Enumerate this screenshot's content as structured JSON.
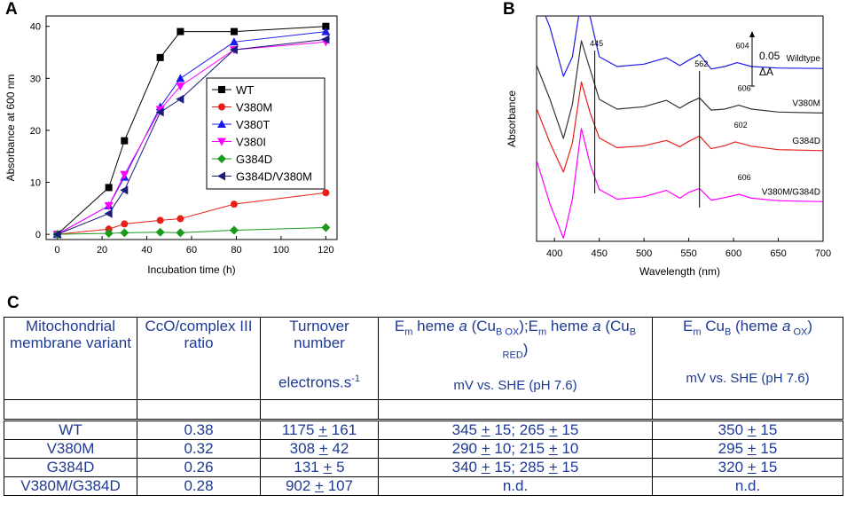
{
  "panels": {
    "a": "A",
    "b": "B",
    "c": "C"
  },
  "chartA": {
    "chart_data": {
      "type": "line",
      "xlabel": "Incubation time (h)",
      "ylabel": "Absorbance at 600 nm",
      "xlim": [
        -5,
        125
      ],
      "ylim": [
        -1,
        42
      ],
      "xticks": [
        0,
        20,
        40,
        60,
        80,
        100,
        120
      ],
      "yticks": [
        0,
        10,
        20,
        30,
        40
      ],
      "series": [
        {
          "name": "WT",
          "color": "#000000",
          "marker": "square",
          "x": [
            0,
            23,
            30,
            46,
            55,
            79,
            120
          ],
          "y": [
            0,
            9,
            18,
            34,
            39,
            39,
            40
          ]
        },
        {
          "name": "V380M",
          "color": "#e8201a",
          "marker": "circle",
          "x": [
            0,
            23,
            30,
            46,
            55,
            79,
            120
          ],
          "y": [
            0,
            1,
            2,
            2.7,
            3,
            5.8,
            8
          ]
        },
        {
          "name": "V380T",
          "color": "#1a1ae8",
          "marker": "triangle-up",
          "x": [
            0,
            23,
            30,
            46,
            55,
            79,
            120
          ],
          "y": [
            0,
            5.5,
            11,
            24.5,
            30,
            37,
            39
          ]
        },
        {
          "name": "V380I",
          "color": "#ff00ff",
          "marker": "triangle-down",
          "x": [
            0,
            23,
            30,
            46,
            55,
            79,
            120
          ],
          "y": [
            0,
            5.5,
            11.5,
            24,
            28.5,
            35.5,
            37
          ]
        },
        {
          "name": "G384D",
          "color": "#1a9a1a",
          "marker": "diamond",
          "x": [
            0,
            23,
            30,
            46,
            55,
            79,
            120
          ],
          "y": [
            0,
            0.2,
            0.3,
            0.4,
            0.3,
            0.8,
            1.3
          ]
        },
        {
          "name": "G384D/V380M",
          "color": "#1c1c7a",
          "marker": "triangle-left",
          "x": [
            0,
            23,
            30,
            46,
            55,
            79,
            120
          ],
          "y": [
            0,
            4,
            8.5,
            23.5,
            26,
            35.5,
            37.5
          ]
        }
      ]
    }
  },
  "chartB": {
    "chart_data": {
      "type": "line",
      "xlabel": "Wavelength (nm)",
      "ylabel": "Absorbance",
      "xlim": [
        380,
        700
      ],
      "xticks": [
        400,
        450,
        500,
        550,
        600,
        650,
        700
      ],
      "markers": [
        {
          "label": "445",
          "x": 445
        },
        {
          "label": "562",
          "x": 562
        }
      ],
      "scale_bar": {
        "value": "0.05",
        "unit": "ΔA"
      },
      "series": [
        {
          "name": "Wildtype",
          "peak_label": "604",
          "color": "#1a1ae8",
          "x": [
            380,
            395,
            410,
            420,
            430,
            440,
            450,
            470,
            500,
            525,
            540,
            550,
            562,
            575,
            590,
            604,
            620,
            650,
            700
          ],
          "y": [
            250,
            180,
            80,
            120,
            240,
            200,
            120,
            100,
            105,
            118,
            102,
            113,
            125,
            95,
            100,
            108,
            100,
            97,
            96
          ]
        },
        {
          "name": "V380M",
          "peak_label": "606",
          "color": "#333333",
          "x": [
            380,
            395,
            410,
            420,
            430,
            440,
            450,
            470,
            500,
            525,
            540,
            550,
            562,
            575,
            590,
            606,
            620,
            650,
            700
          ],
          "y": [
            130,
            60,
            -20,
            50,
            180,
            120,
            60,
            40,
            45,
            58,
            42,
            53,
            63,
            38,
            40,
            48,
            40,
            34,
            32
          ]
        },
        {
          "name": "G384D",
          "peak_label": "602",
          "color": "#e8201a",
          "x": [
            380,
            395,
            410,
            420,
            430,
            440,
            450,
            470,
            500,
            525,
            540,
            550,
            562,
            575,
            590,
            602,
            620,
            650,
            700
          ],
          "y": [
            90,
            20,
            -40,
            20,
            145,
            80,
            30,
            10,
            14,
            25,
            12,
            23,
            34,
            8,
            14,
            22,
            13,
            6,
            4
          ]
        },
        {
          "name": "V380M/G384D",
          "peak_label": "606",
          "color": "#ff00ff",
          "x": [
            380,
            395,
            410,
            420,
            430,
            440,
            450,
            470,
            500,
            525,
            540,
            550,
            562,
            575,
            590,
            606,
            620,
            650,
            700
          ],
          "y": [
            50,
            -40,
            -110,
            -30,
            115,
            40,
            -10,
            -30,
            -25,
            -12,
            -28,
            -16,
            -8,
            -32,
            -27,
            -20,
            -28,
            -33,
            -35
          ]
        }
      ]
    }
  },
  "tableC": {
    "headers": {
      "variant": "Mitochondrial membrane variant",
      "ratio": "CcO/complex III ratio",
      "turnover": "Turnover number",
      "turnover_unit": "electrons.s",
      "turnover_unit_sup": "-1",
      "em_heme_a_pre": "E",
      "em_heme_a_sub": "m",
      "em_heme_a_text1": " heme ",
      "em_heme_a_ital": "a",
      "em_heme_a_text2": " (Cu",
      "em_heme_a_sub2": "B OX",
      "em_heme_a_text3": ");E",
      "em_heme_a_sub3": "m",
      "em_heme_a_text4": " heme ",
      "em_heme_a_ital2": "a",
      "em_heme_a_text5": " (Cu",
      "em_heme_a_sub5": "B RED",
      "em_heme_a_text6": ")",
      "em_heme_a_unit": "mV vs. SHE (pH 7.6)",
      "em_cub_pre": "E",
      "em_cub_sub": "m",
      "em_cub_text1": " Cu",
      "em_cub_sub2": "B",
      "em_cub_text2": " (heme ",
      "em_cub_ital": "a",
      "em_cub_sub3": " OX",
      "em_cub_text3": ")",
      "em_cub_unit": "mV vs. SHE (pH 7.6)"
    },
    "rows": [
      {
        "variant": "WT",
        "ratio": "0.38",
        "turnover": "1175 + 161",
        "em_heme_a": "345 + 15; 265 + 15",
        "em_cub": "350 + 15"
      },
      {
        "variant": "V380M",
        "ratio": "0.32",
        "turnover": "308 + 42",
        "em_heme_a": "290 + 10; 215 + 10",
        "em_cub": "295 + 15"
      },
      {
        "variant": "G384D",
        "ratio": "0.26",
        "turnover": "131 + 5",
        "em_heme_a": "340 + 15; 285 + 15",
        "em_cub": "320 + 15"
      },
      {
        "variant": "V380M/G384D",
        "ratio": "0.28",
        "turnover": "902 + 107",
        "em_heme_a": "n.d.",
        "em_cub": "n.d."
      }
    ]
  }
}
